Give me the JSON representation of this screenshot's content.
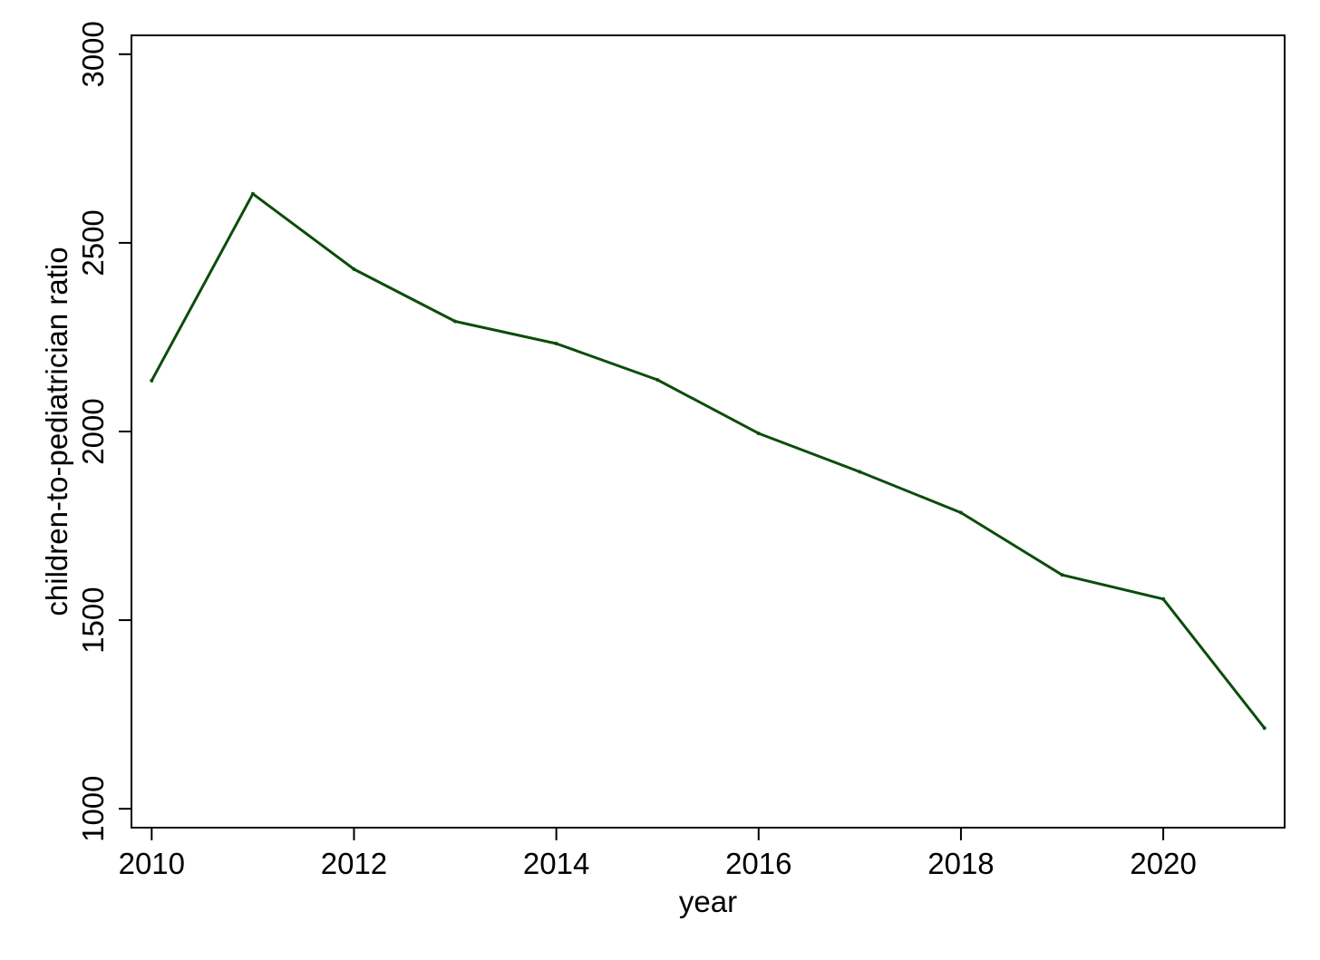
{
  "chart_data": {
    "type": "line",
    "title": "",
    "xlabel": "year",
    "ylabel": "children-to-pediatrician ratio",
    "xlim": [
      2009.8,
      2021.2
    ],
    "ylim": [
      950,
      3050
    ],
    "x_ticks": [
      2010,
      2012,
      2014,
      2016,
      2018,
      2020
    ],
    "y_ticks": [
      1000,
      1500,
      2000,
      2500,
      3000
    ],
    "x_tick_labels": [
      "2010",
      "2012",
      "2014",
      "2016",
      "2018",
      "2020"
    ],
    "y_tick_labels": [
      "1000",
      "1500",
      "2000",
      "2500",
      "3000"
    ],
    "grid": false,
    "legend": "none",
    "line_color": "#0b4d0b",
    "series": [
      {
        "x": [
          2010,
          2011,
          2012,
          2013,
          2014,
          2015,
          2016,
          2017,
          2018,
          2019,
          2020,
          2021
        ],
        "y": [
          2135,
          2630,
          2430,
          2292,
          2233,
          2137,
          1995,
          1893,
          1785,
          1620,
          1556,
          1214
        ]
      }
    ]
  }
}
